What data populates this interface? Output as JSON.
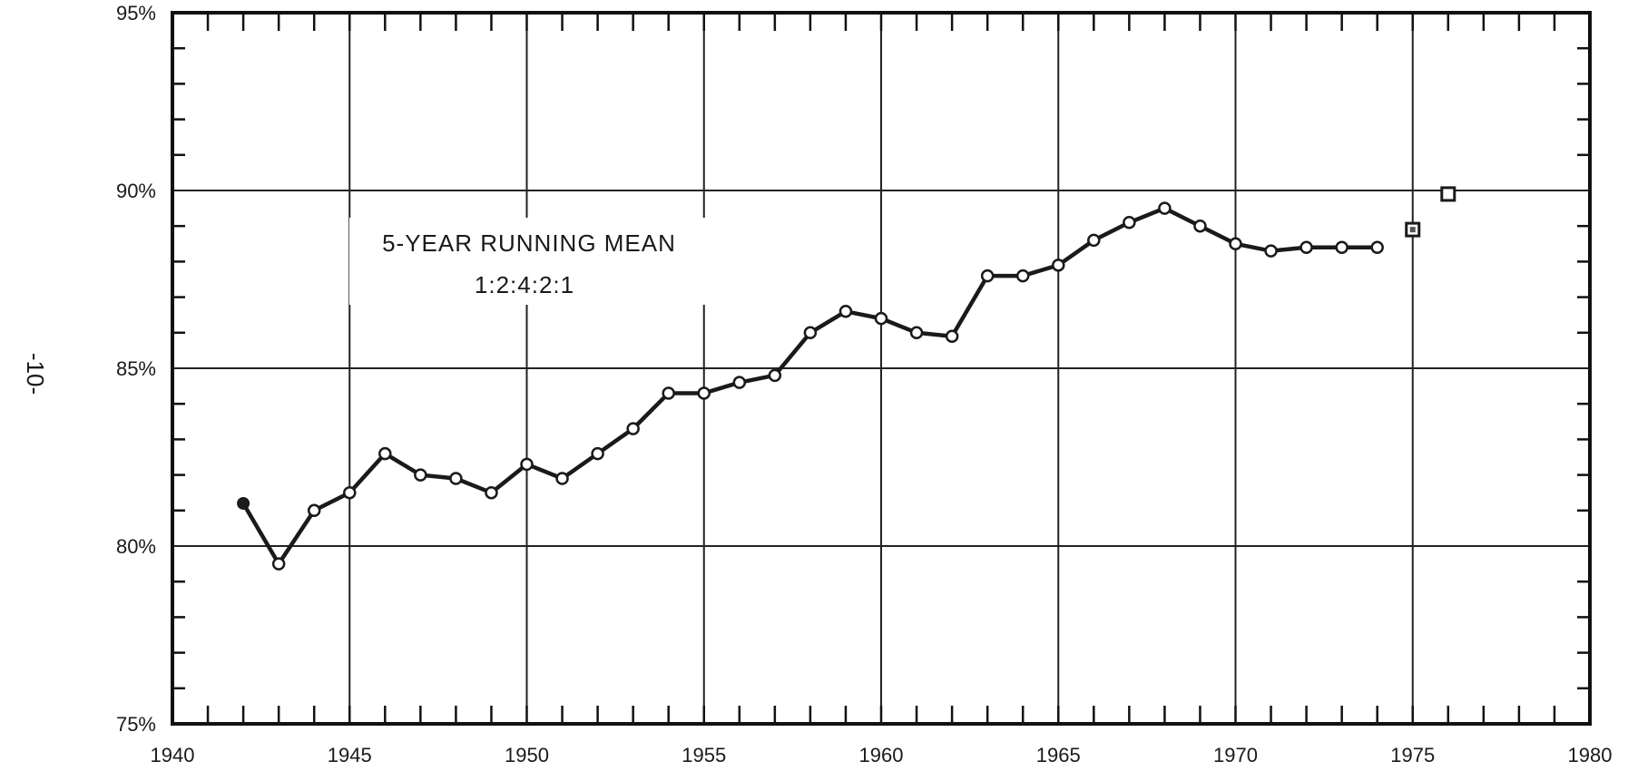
{
  "page_number": "-10-",
  "chart_data": {
    "type": "line",
    "title": "",
    "xlabel": "",
    "ylabel": "",
    "xlim": [
      1940,
      1980
    ],
    "ylim": [
      75,
      95
    ],
    "x_ticks": [
      1940,
      1945,
      1950,
      1955,
      1960,
      1965,
      1970,
      1975,
      1980
    ],
    "x_tick_labels": [
      "1940",
      "1945",
      "1950",
      "1955",
      "1960",
      "1965",
      "1970",
      "1975",
      "1980"
    ],
    "y_ticks": [
      75,
      80,
      85,
      90,
      95
    ],
    "y_tick_labels": [
      "75%",
      "80%",
      "85%",
      "90%",
      "95%"
    ],
    "grid": true,
    "annotation": {
      "line1": "5-YEAR RUNNING MEAN",
      "line2": "1:2:4:2:1"
    },
    "series": [
      {
        "x": [
          1942,
          1943,
          1944,
          1945,
          1946,
          1947,
          1948,
          1949,
          1950,
          1951,
          1952,
          1953,
          1954,
          1955,
          1956,
          1957,
          1958,
          1959,
          1960,
          1961,
          1962,
          1963,
          1964,
          1965,
          1966,
          1967,
          1968,
          1969,
          1970,
          1971,
          1972,
          1973,
          1974
        ],
        "values": [
          81.2,
          79.5,
          81.0,
          81.5,
          82.6,
          82.0,
          81.9,
          81.5,
          82.3,
          81.9,
          82.6,
          83.3,
          84.3,
          84.3,
          84.6,
          84.8,
          86.0,
          86.6,
          86.4,
          86.0,
          85.9,
          87.6,
          87.6,
          87.9,
          88.6,
          89.1,
          89.5,
          89.0,
          88.5,
          88.3,
          88.4,
          88.4,
          88.4
        ]
      },
      {
        "type": "points",
        "marker": "square",
        "x": [
          1975,
          1976
        ],
        "values": [
          88.9,
          89.9
        ]
      }
    ]
  }
}
